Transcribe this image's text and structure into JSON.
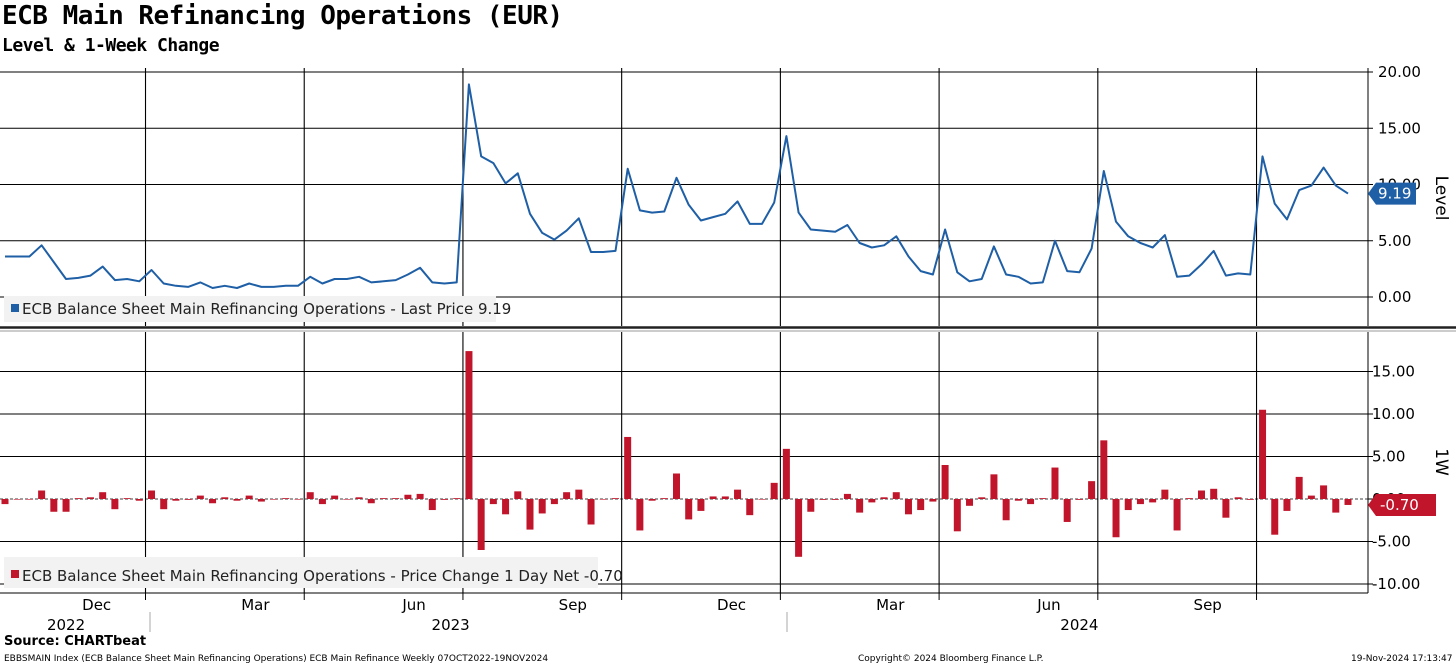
{
  "header": {
    "title": "ECB Main Refinancing Operations (EUR)",
    "subtitle": "Level & 1-Week Change"
  },
  "footer": {
    "source": "Source: CHARTbeat",
    "description": "EBBSMAIN Index (ECB Balance Sheet Main Refinancing Operations) ECB Main Refinance  Weekly 07OCT2022-19NOV2024",
    "copyright": "Copyright© 2024 Bloomberg Finance L.P.",
    "timestamp": "19-Nov-2024 17:13:47"
  },
  "colors": {
    "level_line": "#1f5fa6",
    "change_bar": "#c0152a",
    "grid": "#000000"
  },
  "chart_data": [
    {
      "type": "line",
      "title": "ECB Main Refinancing Operations (EUR)",
      "ylabel": "Level",
      "ylim": [
        -2.5,
        21
      ],
      "yticks": [
        "20.00",
        "15.00",
        "10.00",
        "5.00",
        "0.00"
      ],
      "legend": "ECB Balance Sheet Main Refinancing Operations - Last Price 9.19",
      "last_value_label": "9.19",
      "series": [
        {
          "name": "ECB Balance Sheet Main Refinancing Operations",
          "values": [
            3.6,
            3.6,
            3.6,
            4.6,
            3.1,
            1.6,
            1.7,
            1.9,
            2.7,
            1.5,
            1.6,
            1.4,
            2.4,
            1.2,
            1.0,
            0.9,
            1.3,
            0.8,
            1.0,
            0.8,
            1.2,
            0.9,
            0.9,
            1.0,
            1.0,
            1.8,
            1.2,
            1.6,
            1.6,
            1.8,
            1.3,
            1.4,
            1.5,
            2.0,
            2.6,
            1.3,
            1.2,
            1.3,
            18.9,
            12.5,
            11.9,
            10.1,
            11.0,
            7.4,
            5.7,
            5.1,
            5.9,
            7.0,
            4.0,
            4.0,
            4.1,
            11.4,
            7.7,
            7.5,
            7.6,
            10.6,
            8.2,
            6.8,
            7.1,
            7.4,
            8.5,
            6.5,
            6.5,
            8.4,
            14.3,
            7.5,
            6.0,
            5.9,
            5.8,
            6.4,
            4.8,
            4.4,
            4.6,
            5.4,
            3.6,
            2.3,
            2.0,
            6.0,
            2.2,
            1.4,
            1.6,
            4.5,
            2.0,
            1.8,
            1.2,
            1.3,
            5.0,
            2.3,
            2.2,
            4.3,
            11.2,
            6.7,
            5.4,
            4.8,
            4.4,
            5.5,
            1.8,
            1.9,
            2.9,
            4.1,
            1.9,
            2.1,
            2.0,
            12.5,
            8.3,
            6.9,
            9.5,
            9.9,
            11.5,
            9.9,
            9.19
          ]
        }
      ]
    },
    {
      "type": "bar",
      "title": "1-Week Change",
      "ylabel": "1W",
      "ylim": [
        -11.5,
        19.5
      ],
      "yticks": [
        "15.00",
        "10.00",
        "5.00",
        "0.00",
        "-5.00",
        "-10.00"
      ],
      "legend": "ECB Balance Sheet Main Refinancing Operations - Price Change 1 Day Net -0.70",
      "last_value_label": "-0.70",
      "series": [
        {
          "name": "ECB Balance Sheet Main Refinancing Operations - Price Change 1 Day Net",
          "values": [
            -0.6,
            0.0,
            0.0,
            1.0,
            -1.5,
            -1.5,
            0.1,
            0.2,
            0.8,
            -1.2,
            0.1,
            -0.2,
            1.0,
            -1.2,
            -0.2,
            -0.1,
            0.4,
            -0.5,
            0.2,
            -0.2,
            0.4,
            -0.3,
            0.0,
            0.1,
            0.0,
            0.8,
            -0.6,
            0.4,
            0.0,
            0.2,
            -0.5,
            0.1,
            0.1,
            0.5,
            0.6,
            -1.3,
            -0.1,
            0.1,
            17.4,
            -6.0,
            -0.6,
            -1.8,
            0.9,
            -3.6,
            -1.7,
            -0.6,
            0.8,
            1.1,
            -3.0,
            0.0,
            0.1,
            7.3,
            -3.7,
            -0.2,
            0.1,
            3.0,
            -2.4,
            -1.4,
            0.3,
            0.3,
            1.1,
            -1.9,
            0.0,
            1.9,
            5.9,
            -6.8,
            -1.5,
            -0.1,
            -0.1,
            0.6,
            -1.6,
            -0.4,
            0.2,
            0.8,
            -1.8,
            -1.3,
            -0.3,
            4.0,
            -3.8,
            -0.8,
            0.2,
            2.9,
            -2.5,
            -0.2,
            -0.6,
            0.1,
            3.7,
            -2.7,
            -0.1,
            2.1,
            6.9,
            -4.5,
            -1.3,
            -0.6,
            -0.4,
            1.1,
            -3.7,
            0.1,
            1.0,
            1.2,
            -2.2,
            0.2,
            -0.1,
            10.5,
            -4.2,
            -1.4,
            2.6,
            0.4,
            1.6,
            -1.6,
            -0.7
          ]
        }
      ]
    }
  ],
  "x_axis": {
    "months": [
      {
        "label": "Dec",
        "week": 8
      },
      {
        "label": "Mar",
        "week": 21
      },
      {
        "label": "Jun",
        "week": 34
      },
      {
        "label": "Sep",
        "week": 47
      },
      {
        "label": "Dec",
        "week": 60
      },
      {
        "label": "Mar",
        "week": 73
      },
      {
        "label": "Jun",
        "week": 86
      },
      {
        "label": "Sep",
        "week": 99
      }
    ],
    "gridlines_week": [
      12,
      25,
      38,
      51,
      64,
      77,
      90,
      103
    ],
    "years": [
      {
        "label": "2022",
        "week": 5
      },
      {
        "label": "2023",
        "week": 36.5
      },
      {
        "label": "2024",
        "week": 88
      }
    ],
    "year_dividers_week": [
      12,
      64
    ]
  }
}
